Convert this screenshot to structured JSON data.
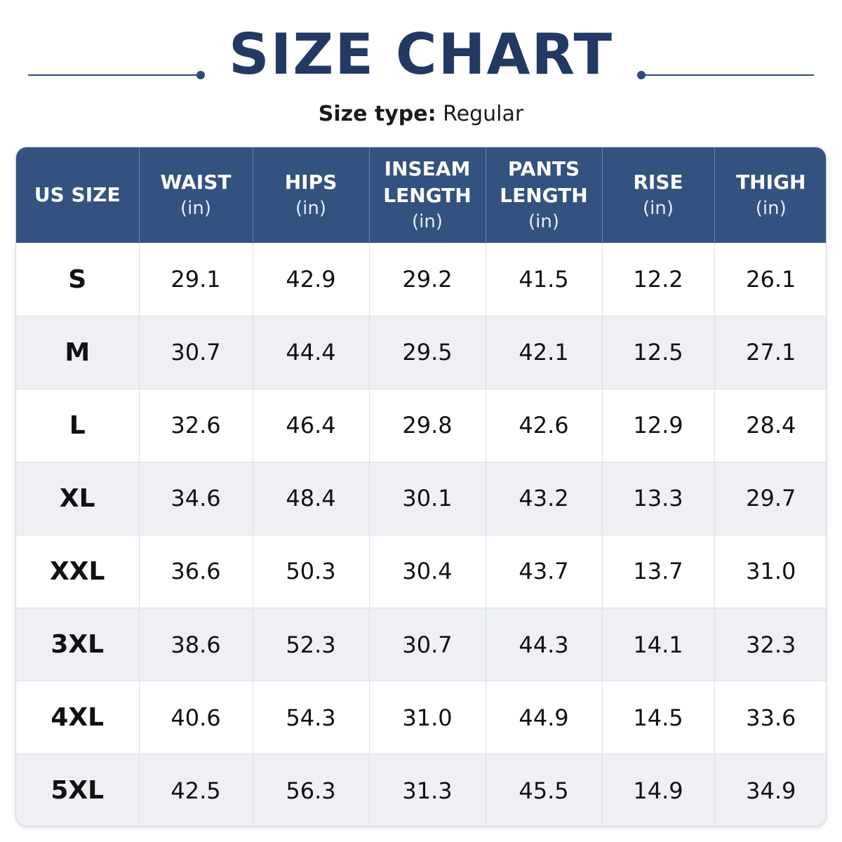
{
  "header": {
    "title": "SIZE CHART",
    "size_type_label": "Size type:",
    "size_type_value": "Regular"
  },
  "colors": {
    "header_bg": "#34527f",
    "title": "#223a63",
    "row_alt": "#eef0f4"
  },
  "table": {
    "columns": [
      {
        "label": "US SIZE",
        "unit": ""
      },
      {
        "label": "WAIST",
        "unit": "(in)"
      },
      {
        "label": "HIPS",
        "unit": "(in)"
      },
      {
        "label": "INSEAM\nLENGTH",
        "unit": "(in)"
      },
      {
        "label": "PANTS\nLENGTH",
        "unit": "(in)"
      },
      {
        "label": "RISE",
        "unit": "(in)"
      },
      {
        "label": "THIGH",
        "unit": "(in)"
      }
    ],
    "rows": [
      [
        "S",
        "29.1",
        "42.9",
        "29.2",
        "41.5",
        "12.2",
        "26.1"
      ],
      [
        "M",
        "30.7",
        "44.4",
        "29.5",
        "42.1",
        "12.5",
        "27.1"
      ],
      [
        "L",
        "32.6",
        "46.4",
        "29.8",
        "42.6",
        "12.9",
        "28.4"
      ],
      [
        "XL",
        "34.6",
        "48.4",
        "30.1",
        "43.2",
        "13.3",
        "29.7"
      ],
      [
        "XXL",
        "36.6",
        "50.3",
        "30.4",
        "43.7",
        "13.7",
        "31.0"
      ],
      [
        "3XL",
        "38.6",
        "52.3",
        "30.7",
        "44.3",
        "14.1",
        "32.3"
      ],
      [
        "4XL",
        "40.6",
        "54.3",
        "31.0",
        "44.9",
        "14.5",
        "33.6"
      ],
      [
        "5XL",
        "42.5",
        "56.3",
        "31.3",
        "45.5",
        "14.9",
        "34.9"
      ]
    ]
  }
}
